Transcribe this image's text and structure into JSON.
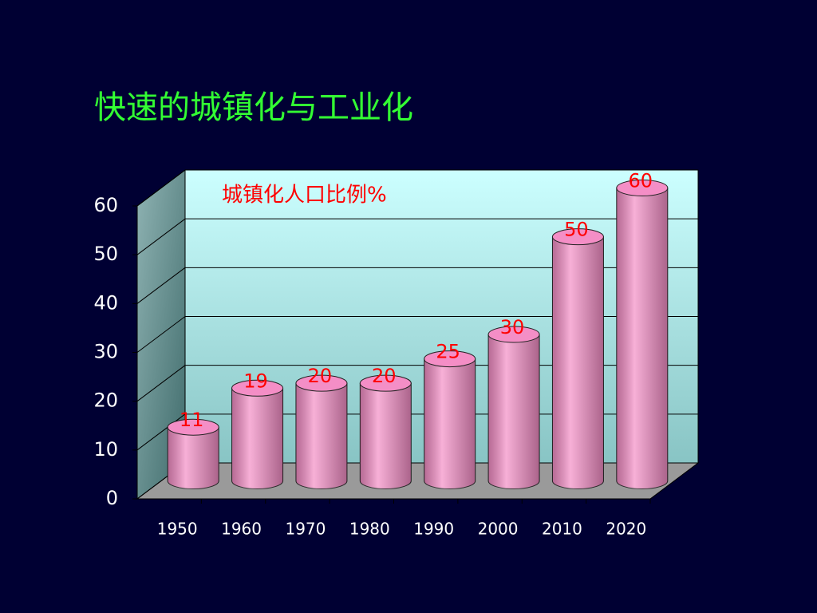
{
  "chart_data": {
    "type": "bar",
    "title": "快速的城镇化与工业化",
    "categories": [
      "1950",
      "1960",
      "1970",
      "1980",
      "1990",
      "2000",
      "2010",
      "2020"
    ],
    "series": [
      {
        "name": "城镇化人口比例%",
        "color": "#f48ec6",
        "values": [
          11,
          19,
          20,
          20,
          25,
          30,
          50,
          60
        ]
      }
    ],
    "ylim": [
      0,
      60
    ],
    "yticks": [
      0,
      10,
      20,
      30,
      40,
      50,
      60
    ],
    "grid": true
  }
}
